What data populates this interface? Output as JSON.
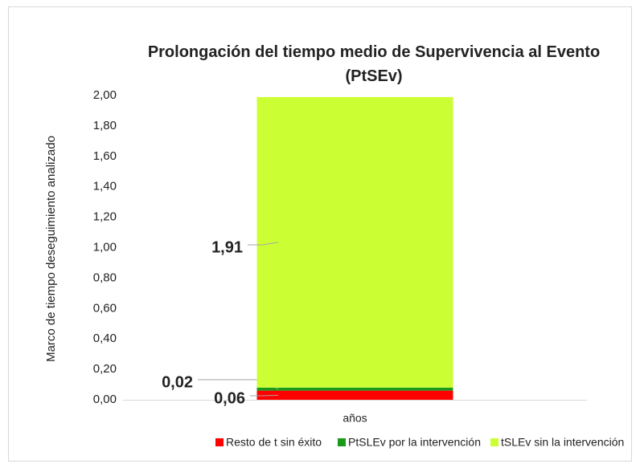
{
  "chart_data": {
    "type": "stacked_bar",
    "title": "Prolongación del tiempo medio de Supervivencia al Evento (PtSEv)",
    "y_label": "Marco de tiempo deseguimiento analizado",
    "categories": [
      "años"
    ],
    "series": [
      {
        "name": "Resto de t sin éxito",
        "color": "#ff0000",
        "label_color": "#ff0000",
        "values": [
          0.06
        ],
        "value_labels": [
          "0,06"
        ]
      },
      {
        "name": "PtSLEv por la intervención",
        "color": "#1a9a1a",
        "label_color": "#1a9a1a",
        "values": [
          0.02
        ],
        "value_labels": [
          "0,02"
        ]
      },
      {
        "name": "tSLEv sin la intervención",
        "color": "#ccff33",
        "label_color": "#92d050",
        "values": [
          1.91
        ],
        "value_labels": [
          "1,91"
        ]
      }
    ],
    "ylim": [
      0,
      2
    ],
    "yticks": [
      {
        "value": 0,
        "label": "0,00"
      },
      {
        "value": 0.2,
        "label": "0,20"
      },
      {
        "value": 0.4,
        "label": "0,40"
      },
      {
        "value": 0.6,
        "label": "0,60"
      },
      {
        "value": 0.8,
        "label": "0,80"
      },
      {
        "value": 1,
        "label": "1,00"
      },
      {
        "value": 1.2,
        "label": "1,20"
      },
      {
        "value": 1.4,
        "label": "1,40"
      },
      {
        "value": 1.6,
        "label": "1,60"
      },
      {
        "value": 1.8,
        "label": "1,80"
      },
      {
        "value": 2,
        "label": "2,00"
      }
    ],
    "legend": "bottom"
  }
}
